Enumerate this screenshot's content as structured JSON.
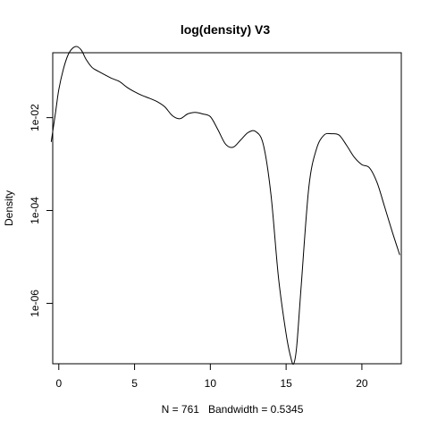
{
  "chart_data": {
    "type": "line",
    "title": "log(density) V3",
    "xlabel": "N = 761   Bandwidth = 0.5345",
    "ylabel": "Density",
    "y_scale": "log10",
    "xlim": [
      -0.4,
      22.6
    ],
    "ylim": [
      5e-08,
      0.25
    ],
    "x_ticks": [
      0,
      5,
      10,
      15,
      20
    ],
    "x_tick_labels": [
      "0",
      "5",
      "10",
      "15",
      "20"
    ],
    "y_ticks": [
      0.01,
      0.0001,
      1e-06
    ],
    "y_tick_labels": [
      "1e-02",
      "1e-04",
      "1e-06"
    ],
    "grid": false,
    "line_color": "#000000",
    "series": [
      {
        "x": [
          -0.5,
          -0.2,
          0.0,
          0.3,
          0.6,
          0.9,
          1.2,
          1.5,
          1.8,
          2.2,
          2.6,
          3.0,
          3.5,
          4.0,
          4.5,
          5.0,
          5.5,
          6.0,
          6.5,
          7.0,
          7.5,
          8.0,
          8.5,
          9.0,
          9.5,
          10.0,
          10.5,
          11.0,
          11.5,
          12.0,
          12.5,
          13.0,
          13.5,
          14.0,
          14.5,
          15.0,
          15.3,
          15.5,
          15.7,
          16.0,
          16.5,
          17.0,
          17.5,
          18.0,
          18.5,
          19.0,
          19.5,
          20.0,
          20.5,
          21.0,
          21.5,
          22.0,
          22.5
        ],
        "y": [
          0.003,
          0.014,
          0.04,
          0.11,
          0.22,
          0.31,
          0.34,
          0.28,
          0.18,
          0.12,
          0.1,
          0.085,
          0.07,
          0.06,
          0.045,
          0.036,
          0.03,
          0.026,
          0.022,
          0.017,
          0.011,
          0.0095,
          0.012,
          0.013,
          0.012,
          0.0105,
          0.0055,
          0.0027,
          0.0023,
          0.0033,
          0.0048,
          0.005,
          0.0026,
          0.00022,
          3.5e-06,
          2.2e-07,
          7e-08,
          5e-08,
          1.2e-07,
          2.5e-06,
          0.00032,
          0.0021,
          0.0042,
          0.0045,
          0.0042,
          0.0025,
          0.0014,
          0.00097,
          0.00083,
          0.0004,
          0.00012,
          3.5e-05,
          1.1e-05
        ]
      }
    ]
  }
}
